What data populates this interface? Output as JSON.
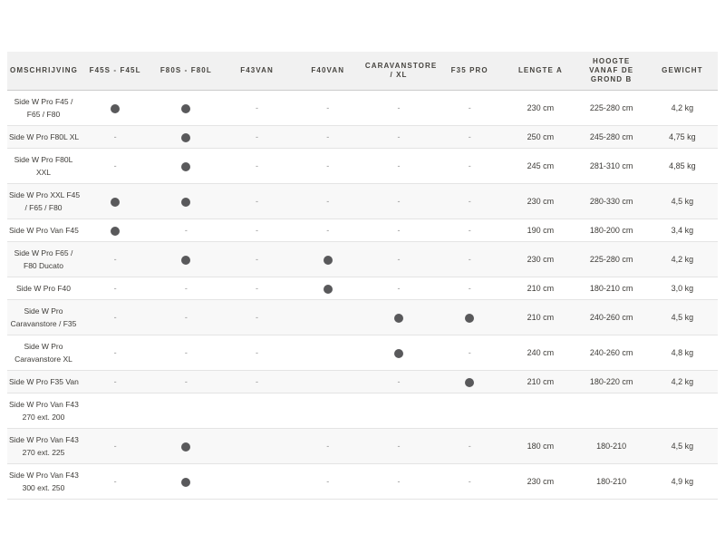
{
  "table": {
    "columns": [
      "OMSCHRIJVING",
      "F45S - F45L",
      "F80S - F80L",
      "F43VAN",
      "F40VAN",
      "CARAVANSTORE\n/ XL",
      "F35 PRO",
      "LENGTE A",
      "HOOGTE\nVANAF DE\nGROND B",
      "GEWICHT"
    ],
    "rows": [
      {
        "label": "Side W Pro F45 /\nF65 / F80",
        "models": [
          "dot",
          "dot",
          "-",
          "-",
          "-",
          "-"
        ],
        "specs": [
          "230 cm",
          "225-280 cm",
          "4,2 kg"
        ]
      },
      {
        "label": "Side W Pro F80L XL",
        "models": [
          "-",
          "dot",
          "-",
          "-",
          "-",
          "-"
        ],
        "specs": [
          "250 cm",
          "245-280 cm",
          "4,75 kg"
        ]
      },
      {
        "label": "Side W Pro F80L\nXXL",
        "models": [
          "-",
          "dot",
          "-",
          "-",
          "-",
          "-"
        ],
        "specs": [
          "245 cm",
          "281-310 cm",
          "4,85 kg"
        ]
      },
      {
        "label": "Side W Pro XXL F45\n/ F65 / F80",
        "models": [
          "dot",
          "dot",
          "-",
          "-",
          "-",
          "-"
        ],
        "specs": [
          "230 cm",
          "280-330 cm",
          "4,5 kg"
        ]
      },
      {
        "label": "Side W Pro Van F45",
        "models": [
          "dot",
          "-",
          "-",
          "-",
          "-",
          "-"
        ],
        "specs": [
          "190 cm",
          "180-200 cm",
          "3,4 kg"
        ]
      },
      {
        "label": "Side W Pro F65 /\nF80 Ducato",
        "models": [
          "-",
          "dot",
          "-",
          "dot",
          "-",
          "-"
        ],
        "specs": [
          "230 cm",
          "225-280 cm",
          "4,2 kg"
        ]
      },
      {
        "label": "Side W Pro F40",
        "models": [
          "-",
          "-",
          "-",
          "dot",
          "-",
          "-"
        ],
        "specs": [
          "210 cm",
          "180-210 cm",
          "3,0 kg"
        ]
      },
      {
        "label": "Side W Pro\nCaravanstore / F35",
        "models": [
          "-",
          "-",
          "-",
          "",
          "dot",
          "dot"
        ],
        "specs": [
          "210 cm",
          "240-260 cm",
          "4,5 kg"
        ]
      },
      {
        "label": "Side W Pro\nCaravanstore XL",
        "models": [
          "-",
          "-",
          "-",
          "",
          "dot",
          "-"
        ],
        "specs": [
          "240 cm",
          "240-260 cm",
          "4,8 kg"
        ]
      },
      {
        "label": "Side W Pro F35 Van",
        "models": [
          "-",
          "-",
          "-",
          "",
          "-",
          "dot"
        ],
        "specs": [
          "210 cm",
          "180-220 cm",
          "4,2 kg"
        ]
      },
      {
        "label": "Side W Pro Van F43\n270 ext. 200",
        "models": [
          "",
          "",
          "",
          "",
          "",
          ""
        ],
        "specs": [
          "",
          "",
          ""
        ]
      },
      {
        "label": "Side W Pro Van F43\n270 ext. 225",
        "models": [
          "-",
          "dot",
          "",
          "-",
          "-",
          "-"
        ],
        "specs": [
          "180 cm",
          "180-210",
          "4,5 kg"
        ]
      },
      {
        "label": "Side W Pro Van F43\n300 ext. 250",
        "models": [
          "-",
          "dot",
          "",
          "-",
          "-",
          "-"
        ],
        "specs": [
          "230 cm",
          "180-210",
          "4,9 kg"
        ]
      }
    ]
  },
  "colors": {
    "header_bg": "#f1f1f1",
    "header_text": "#46443f",
    "header_border": "#cccccc",
    "row_alt_bg": "#f8f8f8",
    "row_border": "#e4e4e4",
    "body_text": "#3e3c38",
    "dash_text": "#8f8f8f",
    "dot": "#59595b"
  }
}
